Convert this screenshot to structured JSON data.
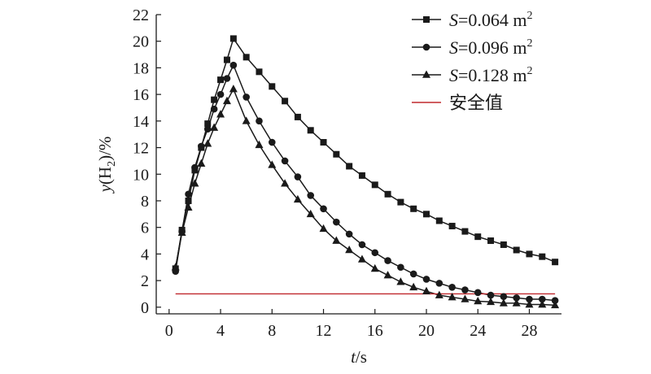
{
  "chart_data": {
    "type": "line",
    "xlabel": {
      "var": "t",
      "unit": "/s"
    },
    "ylabel": {
      "var": "y",
      "open": "(H",
      "sub": "2",
      "close": ")/%"
    },
    "xlim": [
      -1,
      30.5
    ],
    "ylim": [
      -0.5,
      22
    ],
    "xticks": [
      0,
      4,
      8,
      12,
      16,
      20,
      24,
      28
    ],
    "yticks": [
      0,
      2,
      4,
      6,
      8,
      10,
      12,
      14,
      16,
      18,
      20,
      22
    ],
    "legend_position": "top-right",
    "series": [
      {
        "name": "S=0.064 m²",
        "label": {
          "var": "S",
          "rest": "=0.064 m",
          "sup": "2"
        },
        "color": "#1a1a1a",
        "marker": "square",
        "x": [
          0.5,
          1.0,
          1.5,
          2.0,
          2.5,
          3.0,
          3.5,
          4.0,
          4.5,
          5.0,
          6.0,
          7.0,
          8.0,
          9.0,
          10.0,
          11.0,
          12.0,
          13.0,
          14.0,
          15.0,
          16.0,
          17.0,
          18.0,
          19.0,
          20.0,
          21.0,
          22.0,
          23.0,
          24.0,
          25.0,
          26.0,
          27.0,
          28.0,
          29.0,
          30.0
        ],
        "y": [
          2.9,
          5.8,
          8.0,
          10.3,
          12.0,
          13.8,
          15.6,
          17.1,
          18.6,
          20.2,
          18.8,
          17.7,
          16.6,
          15.5,
          14.3,
          13.3,
          12.4,
          11.5,
          10.6,
          9.9,
          9.2,
          8.5,
          7.9,
          7.4,
          7.0,
          6.5,
          6.1,
          5.7,
          5.3,
          5.0,
          4.7,
          4.3,
          4.0,
          3.8,
          3.4
        ]
      },
      {
        "name": "S=0.096 m²",
        "label": {
          "var": "S",
          "rest": "=0.096 m",
          "sup": "2"
        },
        "color": "#1a1a1a",
        "marker": "circle",
        "x": [
          0.5,
          1.0,
          1.5,
          2.0,
          2.5,
          3.0,
          3.5,
          4.0,
          4.5,
          5.0,
          6.0,
          7.0,
          8.0,
          9.0,
          10.0,
          11.0,
          12.0,
          13.0,
          14.0,
          15.0,
          16.0,
          17.0,
          18.0,
          19.0,
          20.0,
          21.0,
          22.0,
          23.0,
          24.0,
          25.0,
          26.0,
          27.0,
          28.0,
          29.0,
          30.0
        ],
        "y": [
          2.7,
          5.7,
          8.5,
          10.5,
          12.1,
          13.4,
          14.9,
          16.0,
          17.2,
          18.2,
          15.8,
          14.0,
          12.4,
          11.0,
          9.8,
          8.4,
          7.4,
          6.4,
          5.5,
          4.7,
          4.1,
          3.5,
          3.0,
          2.5,
          2.1,
          1.8,
          1.5,
          1.3,
          1.1,
          0.9,
          0.8,
          0.7,
          0.6,
          0.6,
          0.5
        ]
      },
      {
        "name": "S=0.128 m²",
        "label": {
          "var": "S",
          "rest": "=0.128 m",
          "sup": "2"
        },
        "color": "#1a1a1a",
        "marker": "triangle",
        "x": [
          0.5,
          1.0,
          1.5,
          2.0,
          2.5,
          3.0,
          3.5,
          4.0,
          4.5,
          5.0,
          6.0,
          7.0,
          8.0,
          9.0,
          10.0,
          11.0,
          12.0,
          13.0,
          14.0,
          15.0,
          16.0,
          17.0,
          18.0,
          19.0,
          20.0,
          21.0,
          22.0,
          23.0,
          24.0,
          25.0,
          26.0,
          27.0,
          28.0,
          29.0,
          30.0
        ],
        "y": [
          3.0,
          5.6,
          7.5,
          9.3,
          10.8,
          12.3,
          13.5,
          14.5,
          15.5,
          16.4,
          14.0,
          12.2,
          10.7,
          9.3,
          8.1,
          7.0,
          5.9,
          5.0,
          4.3,
          3.6,
          2.9,
          2.4,
          1.9,
          1.5,
          1.2,
          0.9,
          0.75,
          0.6,
          0.45,
          0.4,
          0.3,
          0.3,
          0.2,
          0.2,
          0.15
        ]
      },
      {
        "name": "安全值",
        "label": {
          "var": "",
          "rest": "安全值",
          "sup": ""
        },
        "color": "#c0282d",
        "marker": "none",
        "x": [
          0.5,
          30.0
        ],
        "y": [
          1.0,
          1.0
        ]
      }
    ]
  }
}
